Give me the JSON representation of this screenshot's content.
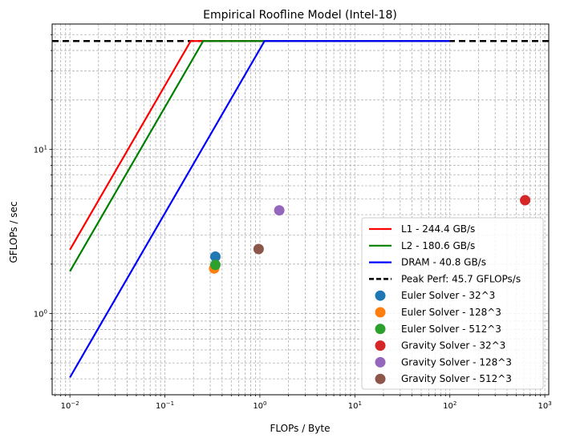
{
  "chart_data": {
    "type": "scatter",
    "title": "Empirical Roofline Model (Intel-18)",
    "xlabel": "FLOPs / Byte",
    "ylabel": "GFLOPs / sec",
    "xscale": "log",
    "yscale": "log",
    "xlim": [
      0.0065,
      1100
    ],
    "ylim": [
      0.32,
      58
    ],
    "grid": true,
    "legend_position": "lower-right",
    "x_tick_labels": [
      {
        "value": 0.01,
        "base": "10",
        "exp": "−2"
      },
      {
        "value": 0.1,
        "base": "10",
        "exp": "−1"
      },
      {
        "value": 1,
        "base": "10",
        "exp": "0"
      },
      {
        "value": 10,
        "base": "10",
        "exp": "1"
      },
      {
        "value": 100,
        "base": "10",
        "exp": "2"
      },
      {
        "value": 1000,
        "base": "10",
        "exp": "3"
      }
    ],
    "y_tick_labels": [
      {
        "value": 1,
        "base": "10",
        "exp": "0"
      },
      {
        "value": 10,
        "base": "10",
        "exp": "1"
      }
    ],
    "peak_perf": 45.7,
    "ceilings": [
      {
        "name": "L1 - 244.4 GB/s",
        "bandwidth": 244.4,
        "color": "#ff0000",
        "x_range": [
          0.01,
          100
        ]
      },
      {
        "name": "L2 - 180.6 GB/s",
        "bandwidth": 180.6,
        "color": "#008000",
        "x_range": [
          0.01,
          100
        ]
      },
      {
        "name": "DRAM - 40.8 GB/s",
        "bandwidth": 40.8,
        "color": "#0000ff",
        "x_range": [
          0.01,
          100
        ]
      }
    ],
    "peak_line": {
      "name": "Peak Perf: 45.7 GFLOPs/s",
      "value": 45.7,
      "color": "#000000",
      "style": "dashed"
    },
    "points": [
      {
        "name": "Euler Solver - 32^3",
        "x": 0.34,
        "y": 2.22,
        "color": "#1f77b4"
      },
      {
        "name": "Euler Solver - 128^3",
        "x": 0.33,
        "y": 1.88,
        "color": "#ff7f0e"
      },
      {
        "name": "Euler Solver - 512^3",
        "x": 0.34,
        "y": 1.98,
        "color": "#2ca02c"
      },
      {
        "name": "Gravity Solver - 32^3",
        "x": 620,
        "y": 4.9,
        "color": "#d62728"
      },
      {
        "name": "Gravity Solver - 128^3",
        "x": 1.6,
        "y": 4.25,
        "color": "#9467bd"
      },
      {
        "name": "Gravity Solver - 512^3",
        "x": 0.97,
        "y": 2.47,
        "color": "#8c564b"
      }
    ]
  }
}
